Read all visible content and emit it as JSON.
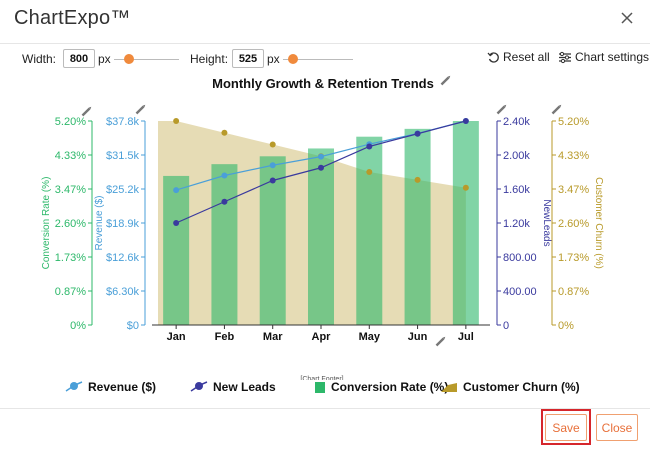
{
  "window": {
    "title": "ChartExpo™"
  },
  "toolbar": {
    "width_label": "Width:",
    "width_value": "800",
    "width_unit": "px",
    "height_label": "Height:",
    "height_value": "525",
    "height_unit": "px",
    "reset_label": "Reset all",
    "settings_label": "Chart settings"
  },
  "footer": {
    "save_label": "Save",
    "close_label": "Close",
    "chart_footer_label": "[Chart Footer]"
  },
  "colors": {
    "revenue": "#4a9fd8",
    "leads": "#3a3a9e",
    "conversion": "#2db86a",
    "churn": "#b89a2a",
    "accent": "#f08a3c",
    "highlight": "#d6262c"
  },
  "icons": [
    "close-icon",
    "reset-icon",
    "settings-icon",
    "pencil-icon"
  ],
  "chart_data": {
    "type": "bar",
    "title": "Monthly Growth & Retention Trends",
    "categories": [
      "Jan",
      "Feb",
      "Mar",
      "Apr",
      "May",
      "Jun",
      "Jul"
    ],
    "axes": {
      "conversion": {
        "label": "Conversion Rate (%)",
        "ticks": [
          "0%",
          "0.87%",
          "1.73%",
          "2.60%",
          "3.47%",
          "4.33%",
          "5.20%"
        ],
        "range": [
          0,
          5.2
        ]
      },
      "revenue": {
        "label": "Revenue ($)",
        "ticks": [
          "$0",
          "$6.30k",
          "$12.6k",
          "$18.9k",
          "$25.2k",
          "$31.5k",
          "$37.8k"
        ],
        "range": [
          0,
          37800
        ]
      },
      "leads": {
        "label": "NewLeads",
        "ticks": [
          "0",
          "400.00",
          "800.00",
          "1.20k",
          "1.60k",
          "2.00k",
          "2.40k"
        ],
        "range": [
          0,
          2400
        ]
      },
      "churn": {
        "label": "Customer Churn (%)",
        "ticks": [
          "0%",
          "0.87%",
          "1.73%",
          "2.60%",
          "3.47%",
          "4.33%",
          "5.20%"
        ],
        "range": [
          0,
          5.2
        ]
      }
    },
    "series": [
      {
        "name": "Revenue ($)",
        "type": "line",
        "axis": "revenue",
        "values": [
          25000,
          27700,
          29600,
          31200,
          33500,
          35500,
          37800
        ]
      },
      {
        "name": "New Leads",
        "type": "line",
        "axis": "leads",
        "values": [
          1200,
          1450,
          1700,
          1850,
          2100,
          2250,
          2400
        ]
      },
      {
        "name": "Conversion Rate (%)",
        "type": "bar",
        "axis": "conversion",
        "values": [
          3.8,
          4.1,
          4.3,
          4.5,
          4.8,
          5.0,
          5.2
        ]
      },
      {
        "name": "Customer Churn (%)",
        "type": "area",
        "axis": "churn",
        "values": [
          5.2,
          4.9,
          4.6,
          4.3,
          3.9,
          3.7,
          3.5
        ]
      }
    ]
  }
}
